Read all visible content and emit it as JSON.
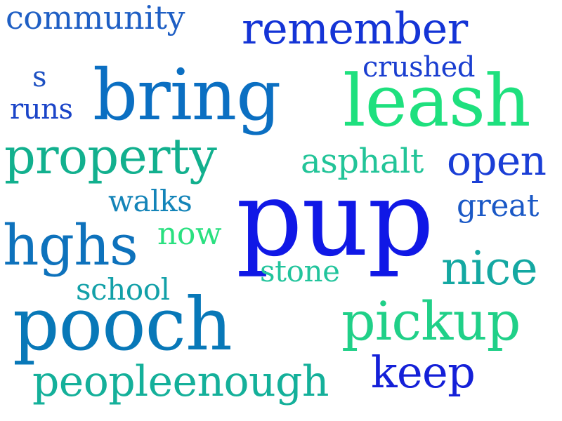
{
  "words": {
    "community": {
      "text": "community",
      "color": "#1f5fc4"
    },
    "remember": {
      "text": "remember",
      "color": "#1434d6"
    },
    "crushed": {
      "text": "crushed",
      "color": "#1a3ed0"
    },
    "s": {
      "text": "s",
      "color": "#1d50c2"
    },
    "bring": {
      "text": "bring",
      "color": "#0b6fc2"
    },
    "leash": {
      "text": "leash",
      "color": "#1ee07e"
    },
    "runs": {
      "text": "runs",
      "color": "#1a44c8"
    },
    "property": {
      "text": "property",
      "color": "#12b08e"
    },
    "asphalt": {
      "text": "asphalt",
      "color": "#22c498"
    },
    "open": {
      "text": "open",
      "color": "#1a3ed6"
    },
    "walks": {
      "text": "walks",
      "color": "#1484b8"
    },
    "pup": {
      "text": "pup",
      "color": "#1018e6"
    },
    "great": {
      "text": "great",
      "color": "#1a58c6"
    },
    "now": {
      "text": "now",
      "color": "#2ae080"
    },
    "hghs": {
      "text": "hghs",
      "color": "#0e72bc"
    },
    "stone": {
      "text": "stone",
      "color": "#22c49c"
    },
    "nice": {
      "text": "nice",
      "color": "#14a8a2"
    },
    "school": {
      "text": "school",
      "color": "#12a0a8"
    },
    "pooch": {
      "text": "pooch",
      "color": "#0878b8"
    },
    "pickup": {
      "text": "pickup",
      "color": "#20d088"
    },
    "keep": {
      "text": "keep",
      "color": "#1420d8"
    },
    "peopleenough": {
      "text": "peopleenough",
      "color": "#14b09a"
    }
  }
}
